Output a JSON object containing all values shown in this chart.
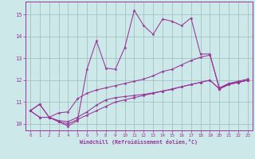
{
  "xlabel": "Windchill (Refroidissement éolien,°C)",
  "background_color": "#cce8e8",
  "line_color": "#993399",
  "xlim": [
    -0.5,
    23.5
  ],
  "ylim": [
    9.7,
    15.6
  ],
  "xticks": [
    0,
    1,
    2,
    3,
    4,
    5,
    6,
    7,
    8,
    9,
    10,
    11,
    12,
    13,
    14,
    15,
    16,
    17,
    18,
    19,
    20,
    21,
    22,
    23
  ],
  "yticks": [
    10,
    11,
    12,
    13,
    14,
    15
  ],
  "series": [
    [
      10.6,
      10.9,
      10.3,
      10.1,
      9.9,
      10.15,
      12.5,
      13.8,
      12.55,
      12.5,
      13.5,
      15.2,
      14.5,
      14.1,
      14.8,
      14.7,
      14.5,
      14.85,
      13.2,
      13.2,
      11.6,
      11.85,
      11.9,
      12.0
    ],
    [
      10.6,
      10.9,
      10.3,
      10.5,
      10.55,
      11.15,
      11.4,
      11.55,
      11.65,
      11.75,
      11.85,
      11.95,
      12.05,
      12.2,
      12.4,
      12.5,
      12.7,
      12.9,
      13.05,
      13.15,
      11.65,
      11.85,
      11.95,
      12.05
    ],
    [
      10.6,
      10.3,
      10.3,
      10.1,
      10.0,
      10.2,
      10.4,
      10.6,
      10.8,
      11.0,
      11.1,
      11.2,
      11.3,
      11.4,
      11.5,
      11.6,
      11.7,
      11.8,
      11.9,
      12.0,
      11.6,
      11.8,
      11.9,
      12.0
    ],
    [
      10.6,
      10.3,
      10.3,
      10.15,
      10.1,
      10.3,
      10.55,
      10.85,
      11.1,
      11.2,
      11.25,
      11.3,
      11.35,
      11.42,
      11.5,
      11.58,
      11.7,
      11.8,
      11.9,
      12.0,
      11.6,
      11.8,
      11.9,
      12.0
    ]
  ]
}
